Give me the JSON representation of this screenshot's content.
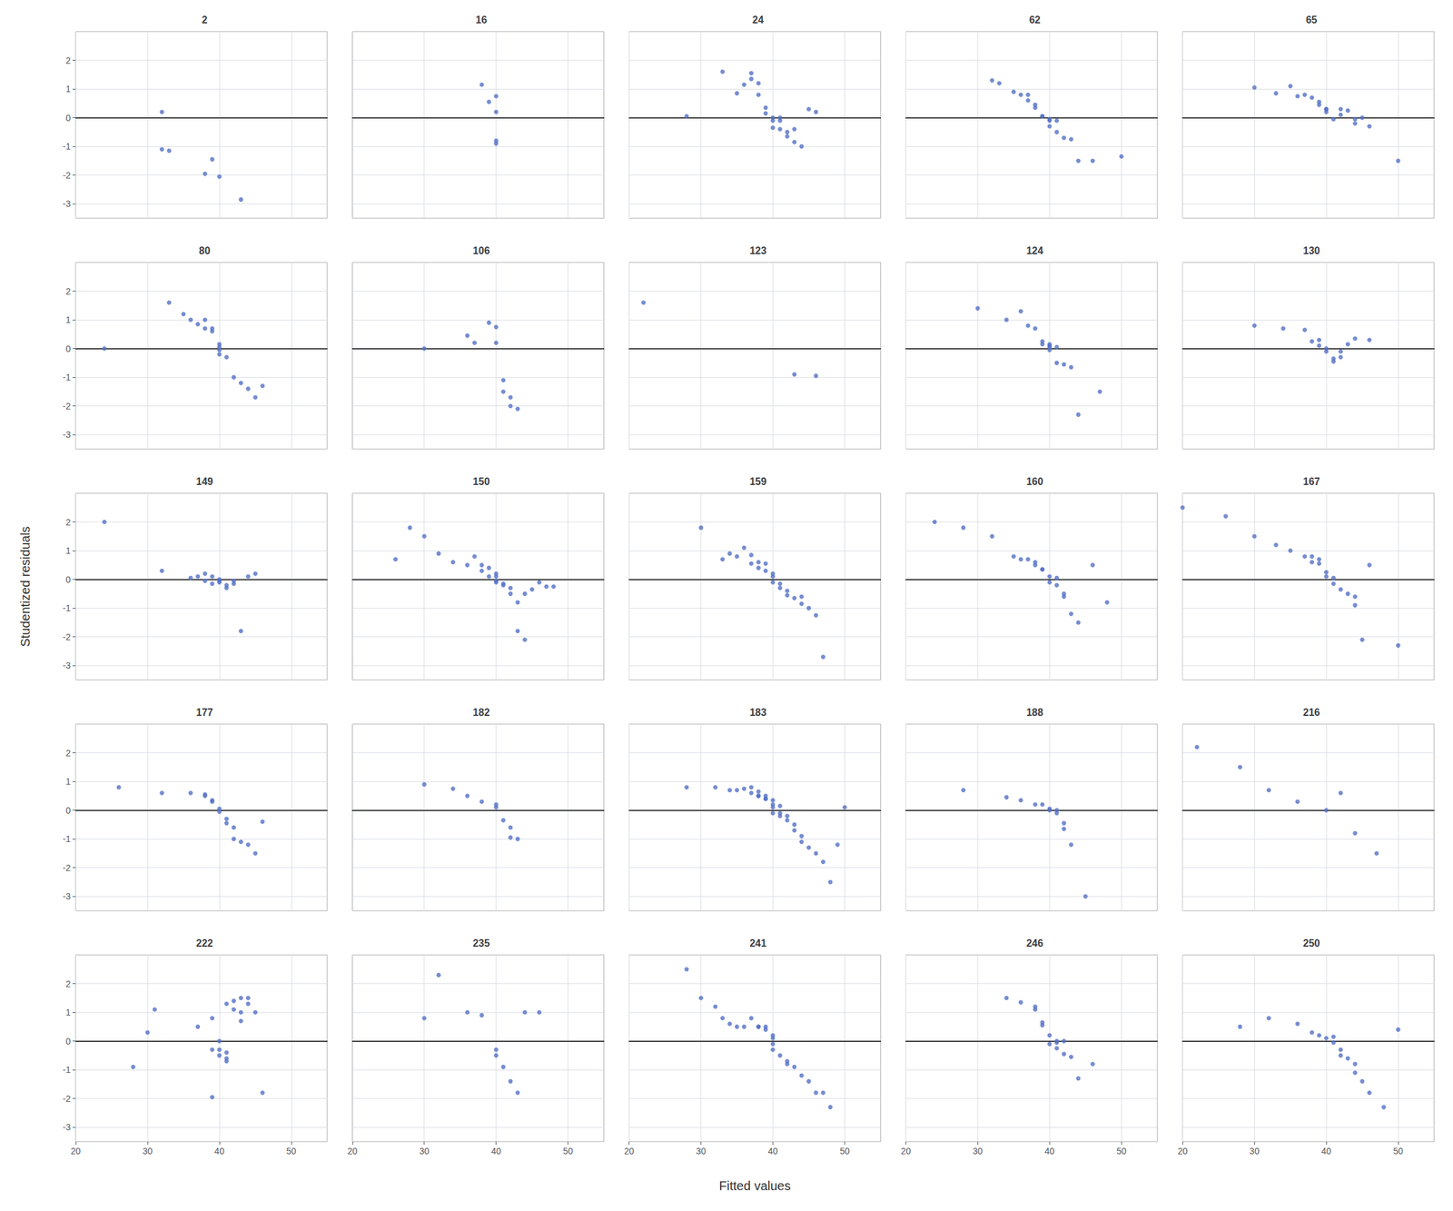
{
  "chart_data": {
    "type": "scatter",
    "xlabel": "Fitted values",
    "ylabel": "Studentized residuals",
    "xlim": [
      20,
      55
    ],
    "ylim": [
      -3.5,
      3.0
    ],
    "xticks": [
      20,
      30,
      40,
      50
    ],
    "yticks": [
      -3,
      -2,
      -1,
      0,
      1,
      2
    ],
    "grid": true,
    "series": [
      {
        "name": "2",
        "x": [
          32,
          32,
          33,
          38,
          39,
          40,
          43
        ],
        "values": [
          0.2,
          -1.1,
          -1.15,
          -1.95,
          -1.45,
          -2.05,
          -2.85
        ]
      },
      {
        "name": "16",
        "x": [
          38,
          39,
          40,
          40,
          40,
          40
        ],
        "values": [
          1.15,
          0.55,
          0.75,
          0.2,
          -0.8,
          -0.9
        ]
      },
      {
        "name": "24",
        "x": [
          28,
          33,
          35,
          36,
          37,
          37,
          38,
          38,
          39,
          39,
          40,
          40,
          40,
          41,
          41,
          41,
          42,
          42,
          43,
          43,
          44,
          45,
          46
        ],
        "values": [
          0.05,
          1.6,
          0.85,
          1.15,
          1.35,
          1.55,
          1.2,
          0.8,
          0.15,
          0.35,
          0.0,
          -0.1,
          -0.35,
          0.0,
          -0.1,
          -0.4,
          -0.65,
          -0.5,
          -0.85,
          -0.4,
          -1.0,
          0.3,
          0.2
        ]
      },
      {
        "name": "62",
        "x": [
          32,
          33,
          35,
          36,
          37,
          37,
          38,
          38,
          39,
          39,
          40,
          40,
          40,
          41,
          41,
          42,
          43,
          44,
          46,
          50
        ],
        "values": [
          1.3,
          1.2,
          0.9,
          0.8,
          0.6,
          0.8,
          0.45,
          0.35,
          0.05,
          0.05,
          -0.05,
          -0.1,
          -0.3,
          -0.1,
          -0.5,
          -0.7,
          -0.75,
          -1.5,
          -1.5,
          -1.35
        ]
      },
      {
        "name": "65",
        "x": [
          30,
          33,
          35,
          36,
          37,
          38,
          39,
          39,
          40,
          40,
          40,
          41,
          42,
          42,
          43,
          44,
          44,
          45,
          46,
          50
        ],
        "values": [
          1.05,
          0.85,
          1.1,
          0.75,
          0.8,
          0.7,
          0.45,
          0.55,
          0.2,
          0.3,
          0.3,
          -0.05,
          0.3,
          0.1,
          0.25,
          -0.05,
          -0.2,
          0.0,
          -0.3,
          -1.5
        ]
      },
      {
        "name": "80",
        "x": [
          24,
          33,
          35,
          36,
          37,
          38,
          38,
          39,
          39,
          40,
          40,
          40,
          40,
          41,
          42,
          43,
          44,
          45,
          46
        ],
        "values": [
          0.0,
          1.6,
          1.2,
          1.0,
          0.85,
          1.0,
          0.7,
          0.7,
          0.6,
          0.15,
          0.05,
          -0.05,
          -0.2,
          -0.3,
          -1.0,
          -1.2,
          -1.4,
          -1.7,
          -1.3
        ]
      },
      {
        "name": "106",
        "x": [
          30,
          36,
          37,
          39,
          40,
          40,
          41,
          41,
          42,
          42,
          43
        ],
        "values": [
          0.0,
          0.45,
          0.2,
          0.9,
          0.75,
          0.2,
          -1.1,
          -1.5,
          -2.0,
          -1.7,
          -2.1
        ]
      },
      {
        "name": "123",
        "x": [
          22,
          43,
          46
        ],
        "values": [
          1.6,
          -0.9,
          -0.95
        ]
      },
      {
        "name": "124",
        "x": [
          30,
          34,
          36,
          37,
          38,
          39,
          39,
          40,
          40,
          40,
          40,
          41,
          41,
          42,
          43,
          44,
          47
        ],
        "values": [
          1.4,
          1.0,
          1.3,
          0.8,
          0.7,
          0.25,
          0.15,
          0.15,
          0.1,
          0.05,
          -0.05,
          -0.5,
          0.05,
          -0.55,
          -0.65,
          -2.3,
          -1.5
        ]
      },
      {
        "name": "130",
        "x": [
          30,
          34,
          37,
          38,
          39,
          39,
          40,
          40,
          41,
          41,
          42,
          42,
          43,
          44,
          46
        ],
        "values": [
          0.8,
          0.7,
          0.65,
          0.25,
          0.3,
          0.1,
          0.0,
          -0.1,
          -0.35,
          -0.45,
          -0.3,
          -0.1,
          0.15,
          0.35,
          0.3
        ]
      },
      {
        "name": "149",
        "x": [
          24,
          32,
          36,
          37,
          38,
          38,
          39,
          39,
          40,
          40,
          40,
          41,
          41,
          42,
          42,
          43,
          44,
          45
        ],
        "values": [
          2.0,
          0.3,
          0.05,
          0.1,
          0.2,
          -0.05,
          0.1,
          -0.15,
          -0.05,
          -0.1,
          0.0,
          -0.2,
          -0.3,
          -0.15,
          -0.05,
          -1.8,
          0.1,
          0.2
        ]
      },
      {
        "name": "150",
        "x": [
          26,
          28,
          30,
          32,
          34,
          36,
          37,
          38,
          38,
          39,
          39,
          40,
          40,
          40,
          40,
          41,
          41,
          42,
          42,
          43,
          43,
          44,
          44,
          45,
          46,
          47,
          48
        ],
        "values": [
          0.7,
          1.8,
          1.5,
          0.9,
          0.6,
          0.5,
          0.8,
          0.5,
          0.3,
          0.4,
          0.1,
          0.2,
          -0.05,
          0.1,
          -0.1,
          -0.15,
          -0.2,
          -0.3,
          -0.5,
          -0.8,
          -1.8,
          -2.1,
          -0.5,
          -0.35,
          -0.1,
          -0.25,
          -0.25
        ]
      },
      {
        "name": "159",
        "x": [
          30,
          33,
          34,
          35,
          36,
          37,
          37,
          38,
          38,
          39,
          39,
          40,
          40,
          40,
          41,
          41,
          42,
          42,
          43,
          44,
          44,
          45,
          46,
          47
        ],
        "values": [
          1.8,
          0.7,
          0.9,
          0.8,
          1.1,
          0.55,
          0.85,
          0.4,
          0.6,
          0.3,
          0.55,
          0.1,
          0.2,
          -0.1,
          -0.15,
          -0.3,
          -0.4,
          -0.55,
          -0.65,
          -0.6,
          -0.85,
          -1.0,
          -1.25,
          -2.7
        ]
      },
      {
        "name": "160",
        "x": [
          24,
          28,
          32,
          35,
          36,
          37,
          38,
          38,
          39,
          39,
          40,
          40,
          41,
          41,
          42,
          42,
          43,
          44,
          46,
          48
        ],
        "values": [
          2.0,
          1.8,
          1.5,
          0.8,
          0.7,
          0.7,
          0.5,
          0.6,
          0.35,
          0.35,
          0.1,
          -0.1,
          -0.2,
          0.05,
          -0.5,
          -0.6,
          -1.2,
          -1.5,
          0.5,
          -0.8
        ]
      },
      {
        "name": "167",
        "x": [
          20,
          26,
          30,
          33,
          35,
          37,
          38,
          38,
          39,
          39,
          40,
          40,
          41,
          41,
          42,
          43,
          44,
          44,
          45,
          46,
          50
        ],
        "values": [
          2.5,
          2.2,
          1.5,
          1.2,
          1.0,
          0.8,
          0.6,
          0.8,
          0.55,
          0.7,
          0.25,
          0.1,
          -0.15,
          0.05,
          -0.35,
          -0.5,
          -0.6,
          -0.9,
          -2.1,
          0.5,
          -2.3
        ]
      },
      {
        "name": "177",
        "x": [
          26,
          32,
          36,
          38,
          38,
          39,
          39,
          40,
          40,
          41,
          41,
          42,
          42,
          43,
          44,
          45,
          46
        ],
        "values": [
          0.8,
          0.6,
          0.6,
          0.5,
          0.55,
          0.3,
          0.35,
          0.05,
          -0.05,
          -0.3,
          -0.45,
          -0.6,
          -1.0,
          -1.1,
          -1.2,
          -1.5,
          -0.4
        ]
      },
      {
        "name": "182",
        "x": [
          30,
          34,
          36,
          38,
          40,
          40,
          41,
          42,
          42,
          43
        ],
        "values": [
          0.9,
          0.75,
          0.5,
          0.3,
          0.1,
          0.2,
          -0.35,
          -0.6,
          -0.95,
          -1.0
        ]
      },
      {
        "name": "183",
        "x": [
          28,
          32,
          34,
          35,
          36,
          37,
          37,
          38,
          38,
          38,
          39,
          39,
          39,
          40,
          40,
          40,
          40,
          41,
          41,
          41,
          42,
          42,
          43,
          43,
          44,
          44,
          45,
          46,
          47,
          48,
          49,
          50
        ],
        "values": [
          0.8,
          0.8,
          0.7,
          0.7,
          0.75,
          0.6,
          0.8,
          0.5,
          0.65,
          0.5,
          0.4,
          0.5,
          0.4,
          0.35,
          0.2,
          0.1,
          -0.1,
          0.15,
          -0.1,
          -0.2,
          -0.35,
          -0.2,
          -0.5,
          -0.7,
          -0.9,
          -1.1,
          -1.3,
          -1.5,
          -1.8,
          -2.5,
          -1.2,
          0.1
        ]
      },
      {
        "name": "188",
        "x": [
          28,
          34,
          36,
          38,
          39,
          40,
          40,
          41,
          41,
          42,
          42,
          43,
          45
        ],
        "values": [
          0.7,
          0.45,
          0.35,
          0.2,
          0.2,
          0.05,
          0.0,
          -0.1,
          0.0,
          -0.45,
          -0.65,
          -1.2,
          -3.0
        ]
      },
      {
        "name": "216",
        "x": [
          22,
          28,
          32,
          36,
          40,
          42,
          44,
          47
        ],
        "values": [
          2.2,
          1.5,
          0.7,
          0.3,
          0.0,
          0.6,
          -0.8,
          -1.5
        ]
      },
      {
        "name": "222",
        "x": [
          28,
          30,
          31,
          37,
          39,
          39,
          39,
          40,
          40,
          40,
          41,
          41,
          41,
          41,
          42,
          42,
          43,
          43,
          43,
          44,
          44,
          45,
          46
        ],
        "values": [
          -0.9,
          0.3,
          1.1,
          0.5,
          -1.95,
          -0.3,
          0.8,
          -0.3,
          -0.5,
          0.0,
          -0.4,
          -0.6,
          1.3,
          -0.7,
          1.1,
          1.4,
          1.0,
          0.7,
          1.5,
          1.5,
          1.3,
          1.0,
          -1.8
        ]
      },
      {
        "name": "235",
        "x": [
          30,
          32,
          36,
          38,
          40,
          40,
          41,
          42,
          43,
          44,
          46
        ],
        "values": [
          0.8,
          2.3,
          1.0,
          0.9,
          -0.3,
          -0.5,
          -0.9,
          -1.4,
          -1.8,
          1.0,
          1.0
        ]
      },
      {
        "name": "241",
        "x": [
          28,
          30,
          32,
          33,
          34,
          35,
          36,
          37,
          38,
          38,
          39,
          39,
          40,
          40,
          40,
          40,
          41,
          42,
          42,
          43,
          44,
          45,
          46,
          47,
          48
        ],
        "values": [
          2.5,
          1.5,
          1.2,
          0.8,
          0.6,
          0.5,
          0.5,
          0.8,
          0.5,
          0.5,
          0.4,
          0.5,
          0.2,
          0.1,
          -0.1,
          -0.3,
          -0.5,
          -0.7,
          -0.8,
          -0.9,
          -1.2,
          -1.4,
          -1.8,
          -1.8,
          -2.3
        ]
      },
      {
        "name": "246",
        "x": [
          34,
          36,
          38,
          38,
          39,
          39,
          40,
          40,
          41,
          41,
          41,
          42,
          42,
          43,
          44,
          46
        ],
        "values": [
          1.5,
          1.35,
          1.1,
          1.2,
          0.55,
          0.65,
          0.2,
          -0.1,
          -0.05,
          0.0,
          -0.25,
          -0.45,
          0.0,
          -0.55,
          -1.3,
          -0.8
        ]
      },
      {
        "name": "250",
        "x": [
          28,
          32,
          36,
          38,
          39,
          40,
          41,
          41,
          42,
          42,
          43,
          44,
          44,
          45,
          46,
          48,
          50
        ],
        "values": [
          0.5,
          0.8,
          0.6,
          0.3,
          0.2,
          0.1,
          0.15,
          -0.05,
          -0.3,
          -0.5,
          -0.6,
          -0.8,
          -1.1,
          -1.4,
          -1.8,
          -2.3,
          0.4
        ]
      }
    ]
  }
}
